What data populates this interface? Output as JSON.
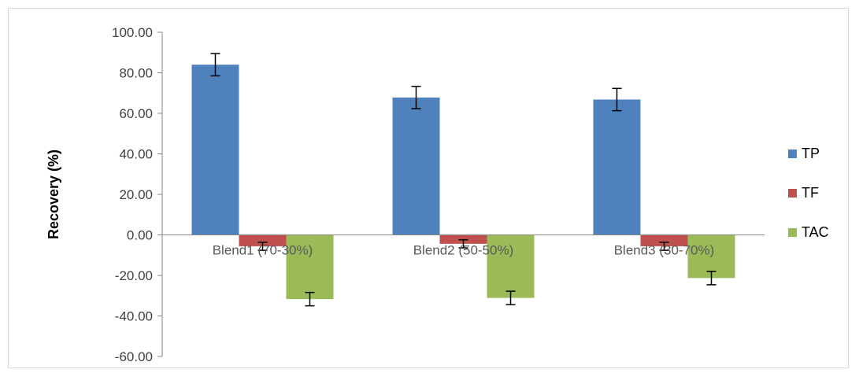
{
  "chart_data": {
    "type": "bar",
    "title": "",
    "xlabel": "",
    "ylabel": "Recovery (%)",
    "ylim": [
      -60,
      100
    ],
    "yticks": [
      "100.00",
      "80.00",
      "60.00",
      "40.00",
      "20.00",
      "0.00",
      "-20.00",
      "-40.00",
      "-60.00"
    ],
    "categories": [
      "Blend1 (70-30%)",
      "Blend2 (50-50%)",
      "Blend3 (30-70%)"
    ],
    "series": [
      {
        "name": "TP",
        "color": "#4f81bd",
        "values": [
          84.0,
          67.8,
          66.8
        ],
        "errors": [
          5.5,
          5.5,
          5.5
        ]
      },
      {
        "name": "TF",
        "color": "#c0504d",
        "values": [
          -5.6,
          -4.4,
          -5.6
        ],
        "errors": [
          2.0,
          2.0,
          2.0
        ]
      },
      {
        "name": "TAC",
        "color": "#9bbb59",
        "values": [
          -31.7,
          -31.1,
          -21.3
        ],
        "errors": [
          3.3,
          3.3,
          3.3
        ]
      }
    ],
    "grid": false,
    "legend": "right"
  }
}
